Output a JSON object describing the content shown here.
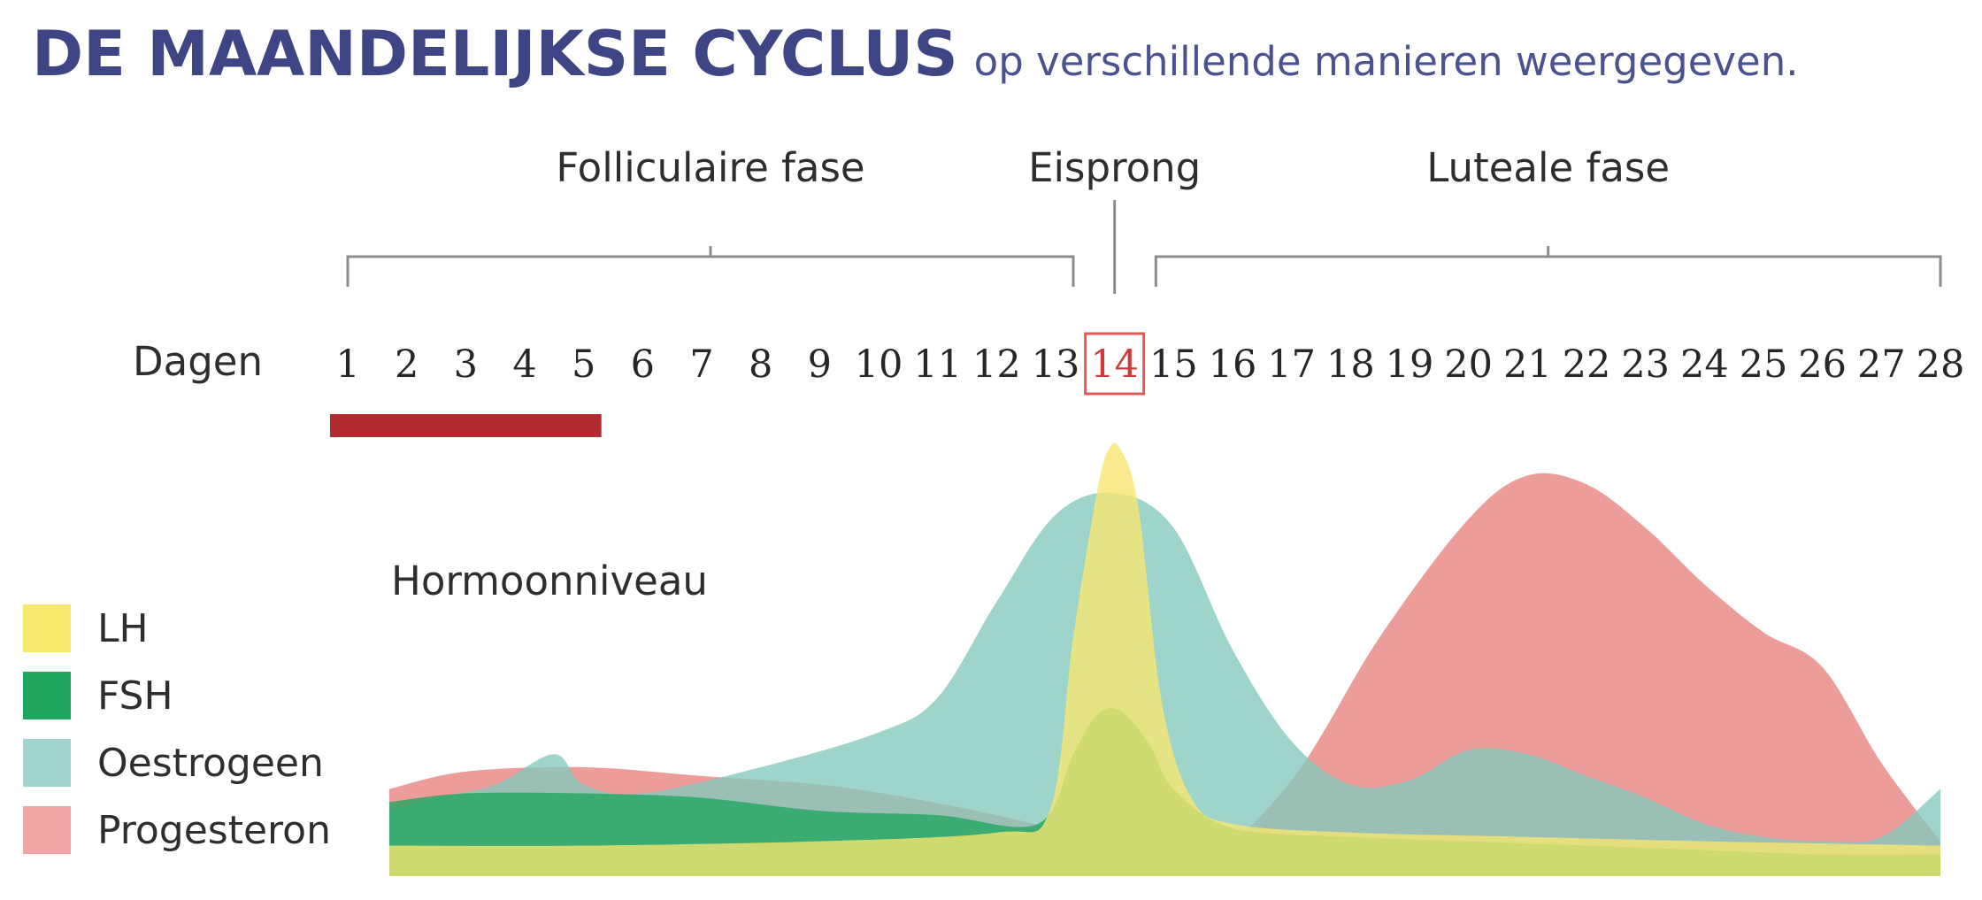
{
  "header": {
    "title": "DE MAANDELIJKSE CYCLUS",
    "subtitle": "op verschillende manieren weergegeven."
  },
  "chart_data": {
    "type": "area",
    "title": "DE MAANDELIJKSE CYCLUS",
    "subtitle": "op verschillende manieren weergegeven.",
    "xlabel": "Dagen",
    "ylabel": "Hormoonniveau",
    "days": [
      1,
      2,
      3,
      4,
      5,
      6,
      7,
      8,
      9,
      10,
      11,
      12,
      13,
      14,
      15,
      16,
      17,
      18,
      19,
      20,
      21,
      22,
      23,
      24,
      25,
      26,
      27,
      28
    ],
    "day_labels": [
      "1",
      "2",
      "3",
      "4",
      "5",
      "6",
      "7",
      "8",
      "9",
      "10",
      "11",
      "12",
      "13",
      "14",
      "15",
      "16",
      "17",
      "18",
      "19",
      "20",
      "21",
      "22",
      "23",
      "24",
      "25",
      "26",
      "27",
      "28"
    ],
    "highlighted_day": 14,
    "menstruation_days": [
      1,
      5
    ],
    "phases": [
      {
        "label": "Folliculaire fase",
        "start_day": 1,
        "end_day": 13.3
      },
      {
        "label": "Eisprong",
        "day": 14
      },
      {
        "label": "Luteale fase",
        "start_day": 14.7,
        "end_day": 28
      }
    ],
    "x_range": [
      1,
      28
    ],
    "y_range": [
      0,
      100
    ],
    "series": [
      {
        "name": "Progesteron",
        "color": "#e7827d",
        "points": [
          [
            1,
            20
          ],
          [
            3,
            24
          ],
          [
            5,
            25
          ],
          [
            7,
            23
          ],
          [
            9,
            21
          ],
          [
            10.5,
            18
          ],
          [
            12,
            14
          ],
          [
            13.5,
            9
          ],
          [
            14.5,
            5
          ],
          [
            15.5,
            3
          ],
          [
            17,
            22
          ],
          [
            18.5,
            55
          ],
          [
            20,
            82
          ],
          [
            21,
            92
          ],
          [
            22,
            90
          ],
          [
            23,
            80
          ],
          [
            24,
            67
          ],
          [
            25,
            56
          ],
          [
            26,
            48
          ],
          [
            27,
            26
          ],
          [
            28,
            8
          ]
        ]
      },
      {
        "name": "Oestrogeen",
        "color": "#84c8bd",
        "points": [
          [
            1,
            15
          ],
          [
            2.5,
            18
          ],
          [
            3.5,
            21
          ],
          [
            4.5,
            28
          ],
          [
            5,
            21
          ],
          [
            6,
            19
          ],
          [
            8,
            25
          ],
          [
            10,
            33
          ],
          [
            11,
            41
          ],
          [
            12,
            63
          ],
          [
            13,
            83
          ],
          [
            14,
            88
          ],
          [
            15,
            80
          ],
          [
            16,
            52
          ],
          [
            17,
            31
          ],
          [
            18,
            21
          ],
          [
            19,
            22
          ],
          [
            20,
            29
          ],
          [
            21,
            28
          ],
          [
            22,
            23
          ],
          [
            23,
            18
          ],
          [
            24,
            12
          ],
          [
            25,
            9
          ],
          [
            26,
            8
          ],
          [
            27,
            9
          ],
          [
            28,
            20
          ]
        ]
      },
      {
        "name": "FSH",
        "color": "#1fa55e",
        "points": [
          [
            1,
            17
          ],
          [
            3,
            19
          ],
          [
            5,
            19
          ],
          [
            7,
            18
          ],
          [
            9,
            15
          ],
          [
            11,
            14
          ],
          [
            12.7,
            12
          ],
          [
            13.3,
            28
          ],
          [
            13.7,
            37
          ],
          [
            14.1,
            38
          ],
          [
            14.6,
            30
          ],
          [
            15,
            20
          ],
          [
            16,
            11
          ],
          [
            18,
            9
          ],
          [
            20,
            8
          ],
          [
            22,
            7
          ],
          [
            24,
            6
          ],
          [
            26,
            5
          ],
          [
            28,
            5
          ]
        ]
      },
      {
        "name": "LH",
        "color": "#f9e76e",
        "points": [
          [
            1,
            7
          ],
          [
            5,
            7
          ],
          [
            9,
            8
          ],
          [
            12,
            10
          ],
          [
            12.9,
            15
          ],
          [
            13.3,
            55
          ],
          [
            13.7,
            88
          ],
          [
            13.9,
            98
          ],
          [
            14.1,
            98
          ],
          [
            14.4,
            85
          ],
          [
            14.8,
            40
          ],
          [
            15.3,
            18
          ],
          [
            16,
            12
          ],
          [
            18,
            10
          ],
          [
            21,
            9
          ],
          [
            24,
            8
          ],
          [
            28,
            7
          ]
        ]
      }
    ]
  },
  "legend": [
    {
      "label": "LH",
      "color": "#f9e76e"
    },
    {
      "label": "FSH",
      "color": "#1fa55e"
    },
    {
      "label": "Oestrogeen",
      "color": "#9fd3cb"
    },
    {
      "label": "Progesteron",
      "color": "#f1a6a3"
    }
  ]
}
